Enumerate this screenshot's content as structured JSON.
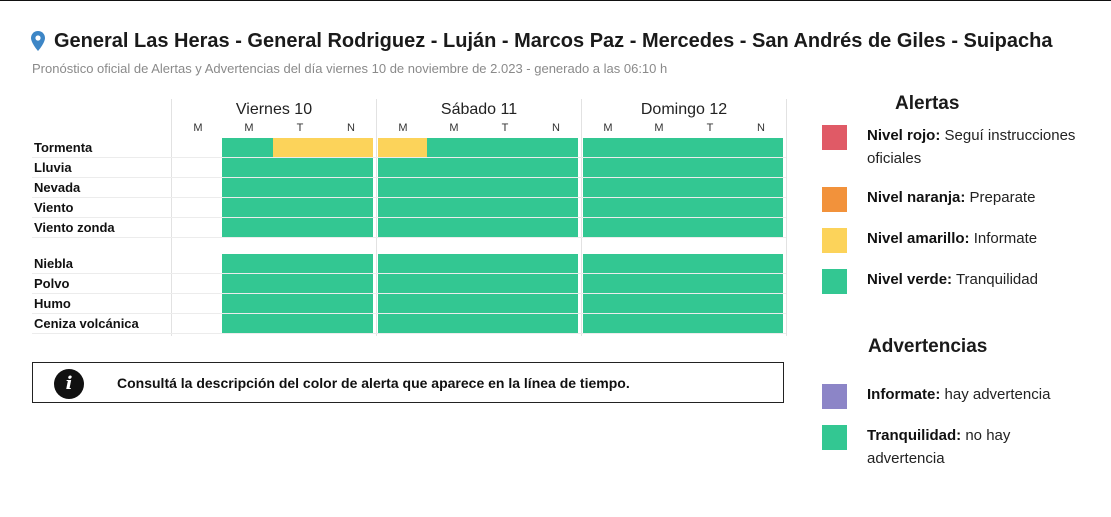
{
  "header": {
    "title": "General Las Heras - General Rodriguez - Luján - Marcos Paz - Mercedes - San Andrés de Giles - Suipacha",
    "subtitle": "Pronóstico oficial de Alertas y Advertencias del día viernes 10 de noviembre de 2.023 - generado a las 06:10 h"
  },
  "colors": {
    "rojo": "#e05a66",
    "naranja": "#f2923b",
    "amarillo": "#fcd35a",
    "verde": "#33c792",
    "violeta": "#8c85c7"
  },
  "timeline": {
    "days": [
      {
        "label": "Viernes 10",
        "slots": [
          "M",
          "M",
          "T",
          "N"
        ]
      },
      {
        "label": "Sábado 11",
        "slots": [
          "M",
          "M",
          "T",
          "N"
        ]
      },
      {
        "label": "Domingo 12",
        "slots": [
          "M",
          "M",
          "T",
          "N"
        ]
      }
    ],
    "alert_rows": [
      {
        "label": "Tormenta",
        "levels": [
          "none",
          "verde",
          "amarillo",
          "amarillo",
          "amarillo",
          "verde",
          "verde",
          "verde",
          "verde",
          "verde",
          "verde",
          "verde"
        ]
      },
      {
        "label": "Lluvia",
        "levels": [
          "none",
          "verde",
          "verde",
          "verde",
          "verde",
          "verde",
          "verde",
          "verde",
          "verde",
          "verde",
          "verde",
          "verde"
        ]
      },
      {
        "label": "Nevada",
        "levels": [
          "none",
          "verde",
          "verde",
          "verde",
          "verde",
          "verde",
          "verde",
          "verde",
          "verde",
          "verde",
          "verde",
          "verde"
        ]
      },
      {
        "label": "Viento",
        "levels": [
          "none",
          "verde",
          "verde",
          "verde",
          "verde",
          "verde",
          "verde",
          "verde",
          "verde",
          "verde",
          "verde",
          "verde"
        ]
      },
      {
        "label": "Viento zonda",
        "levels": [
          "none",
          "verde",
          "verde",
          "verde",
          "verde",
          "verde",
          "verde",
          "verde",
          "verde",
          "verde",
          "verde",
          "verde"
        ]
      }
    ],
    "warning_rows": [
      {
        "label": "Niebla",
        "levels": [
          "none",
          "verde",
          "verde",
          "verde",
          "verde",
          "verde",
          "verde",
          "verde",
          "verde",
          "verde",
          "verde",
          "verde"
        ]
      },
      {
        "label": "Polvo",
        "levels": [
          "none",
          "verde",
          "verde",
          "verde",
          "verde",
          "verde",
          "verde",
          "verde",
          "verde",
          "verde",
          "verde",
          "verde"
        ]
      },
      {
        "label": "Humo",
        "levels": [
          "none",
          "verde",
          "verde",
          "verde",
          "verde",
          "verde",
          "verde",
          "verde",
          "verde",
          "verde",
          "verde",
          "verde"
        ]
      },
      {
        "label": "Ceniza volcánica",
        "levels": [
          "none",
          "verde",
          "verde",
          "verde",
          "verde",
          "verde",
          "verde",
          "verde",
          "verde",
          "verde",
          "verde",
          "verde"
        ]
      }
    ]
  },
  "info_box": {
    "icon": "info-icon",
    "icon_glyph": "i",
    "text": "Consultá la descripción del color de alerta que aparece en la línea de tiempo."
  },
  "legend": {
    "alertas_title": "Alertas",
    "alertas": [
      {
        "color_key": "rojo",
        "bold": "Nivel rojo:",
        "text": " Seguí instrucciones oficiales"
      },
      {
        "color_key": "naranja",
        "bold": "Nivel naranja:",
        "text": " Preparate"
      },
      {
        "color_key": "amarillo",
        "bold": "Nivel amarillo:",
        "text": " Informate"
      },
      {
        "color_key": "verde",
        "bold": "Nivel verde:",
        "text": " Tranquilidad"
      }
    ],
    "advertencias_title": "Advertencias",
    "advertencias": [
      {
        "color_key": "violeta",
        "bold": "Informate:",
        "text": " hay advertencia"
      },
      {
        "color_key": "verde",
        "bold": "Tranquilidad:",
        "text": " no hay advertencia"
      }
    ]
  }
}
